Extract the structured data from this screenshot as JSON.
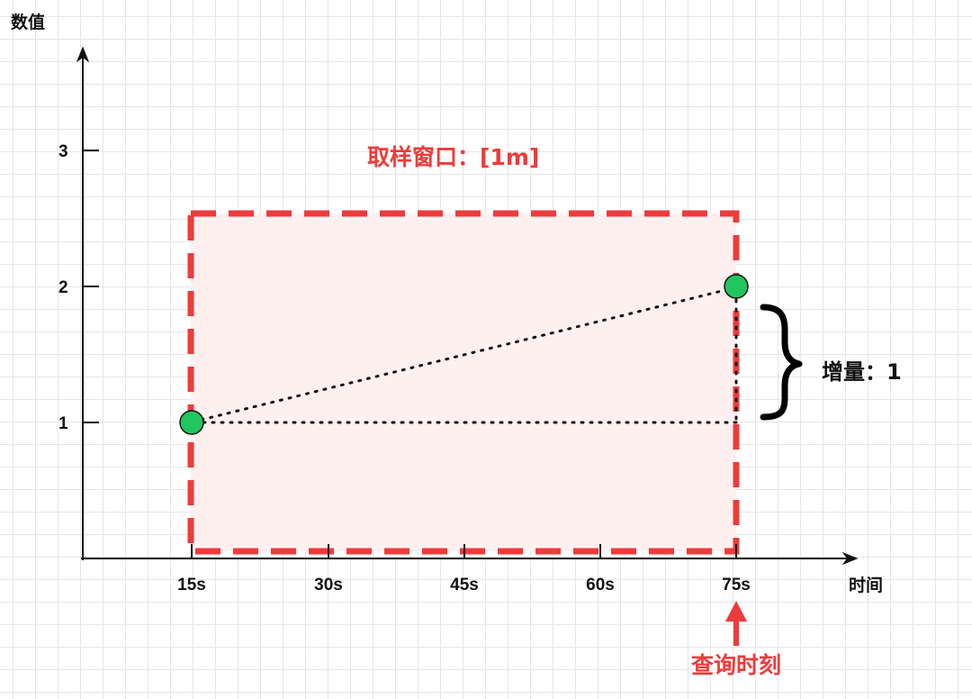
{
  "axes": {
    "y_title": "数值",
    "x_title": "时间",
    "y_ticks": [
      "1",
      "2",
      "3"
    ],
    "x_ticks": [
      "15s",
      "30s",
      "45s",
      "60s",
      "75s"
    ]
  },
  "sampling_window": {
    "label": "取样窗口：[1m]",
    "start": "15s",
    "end": "75s"
  },
  "increment": {
    "label": "增量：1"
  },
  "query": {
    "label": "查询时刻",
    "time": "75s"
  },
  "points": [
    {
      "x": 15,
      "y": 1
    },
    {
      "x": 75,
      "y": 2
    }
  ],
  "colors": {
    "accent": "#ee3b3b",
    "window_fill": "#fff0f0",
    "point": "#22c55e",
    "ink": "#111111"
  }
}
